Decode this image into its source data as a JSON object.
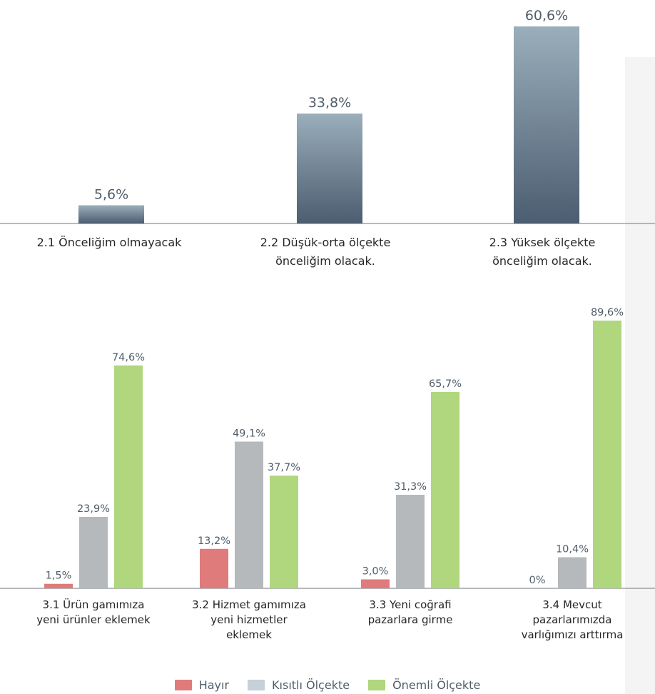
{
  "colors": {
    "top_bar_light": "#9aaebb",
    "top_bar_dark": "#4b5d70",
    "hayir": "#e07b7b",
    "kisitli_bar": "#b6b9bb",
    "kisitli_legend": "#c5d0d9",
    "onemli": "#b0d67e",
    "axis": "#8a8f94",
    "watermark": "#f4f4f4"
  },
  "chart_data": [
    {
      "type": "bar",
      "categories": [
        [
          "2.1 Önceliğim olmayacak"
        ],
        [
          "2.2 Düşük-orta ölçekte",
          "önceliğim olacak."
        ],
        [
          "2.3 Yüksek ölçekte",
          "önceliğim olacak."
        ]
      ],
      "values": [
        5.6,
        33.8,
        60.6
      ],
      "value_labels": [
        "5,6%",
        "33,8%",
        "60,6%"
      ],
      "ylim": [
        0,
        60.6
      ],
      "grid": false
    },
    {
      "type": "bar",
      "categories": [
        [
          "3.1 Ürün gamımıza",
          "yeni ürünler eklemek"
        ],
        [
          "3.2 Hizmet gamımıza",
          "yeni hizmetler",
          "eklemek"
        ],
        [
          "3.3 Yeni coğrafi",
          "pazarlara girme"
        ],
        [
          "3.4 Mevcut",
          "pazarlarımızda",
          "varlığımızı arttırma"
        ]
      ],
      "series": [
        {
          "name": "Hayır",
          "values": [
            1.5,
            13.2,
            3.0,
            0
          ],
          "labels": [
            "1,5%",
            "13,2%",
            "3,0%",
            "0%"
          ]
        },
        {
          "name": "Kısıtlı Ölçekte",
          "values": [
            23.9,
            49.1,
            31.3,
            10.4
          ],
          "labels": [
            "23,9%",
            "49,1%",
            "31,3%",
            "10,4%"
          ]
        },
        {
          "name": "Önemli Ölçekte",
          "values": [
            74.6,
            37.7,
            65.7,
            89.6
          ],
          "labels": [
            "74,6%",
            "37,7%",
            "65,7%",
            "89,6%"
          ]
        }
      ],
      "ylim": [
        0,
        89.6
      ],
      "legend_position": "bottom-center",
      "grid": false
    }
  ]
}
